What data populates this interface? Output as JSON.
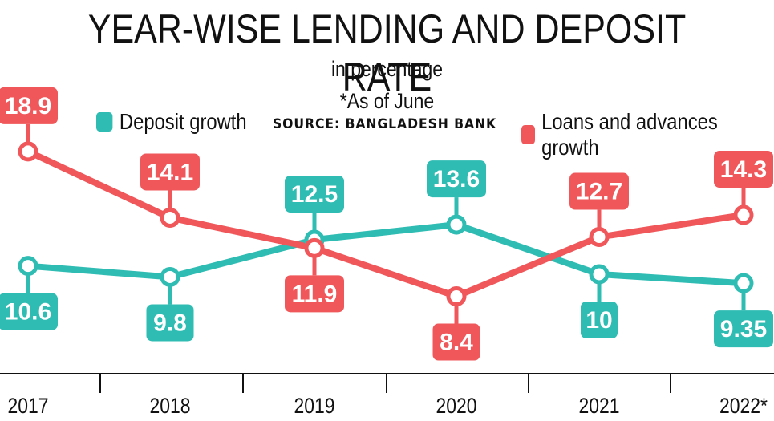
{
  "title": "YEAR-WISE LENDING AND DEPOSIT RATE",
  "subtitle": "in percentage",
  "note": "*As of June",
  "source": "SOURCE: BANGLADESH BANK",
  "colors": {
    "deposit": "#2fbcb3",
    "loans": "#f0575a",
    "axis": "#111111"
  },
  "legend": {
    "deposit_label": "Deposit growth",
    "loans_label": "Loans and advances growth"
  },
  "chart_data": {
    "type": "line",
    "title": "YEAR-WISE LENDING AND DEPOSIT RATE",
    "subtitle": "in percentage",
    "x": [
      "2017",
      "2018",
      "2019",
      "2020",
      "2021",
      "2022*"
    ],
    "series": [
      {
        "name": "Deposit growth",
        "key": "deposit",
        "values": [
          10.6,
          9.8,
          12.5,
          13.6,
          10,
          9.35
        ],
        "labels": [
          "10.6",
          "9.8",
          "12.5",
          "13.6",
          "10",
          "9.35"
        ],
        "label_position": [
          "below",
          "below",
          "above",
          "above",
          "below",
          "below"
        ]
      },
      {
        "name": "Loans and advances growth",
        "key": "loans",
        "values": [
          18.9,
          14.1,
          11.9,
          8.4,
          12.7,
          14.3
        ],
        "labels": [
          "18.9",
          "14.1",
          "11.9",
          "8.4",
          "12.7",
          "14.3"
        ],
        "label_position": [
          "above",
          "above",
          "below",
          "below",
          "above",
          "above"
        ]
      }
    ],
    "legend": "top",
    "grid": false
  }
}
